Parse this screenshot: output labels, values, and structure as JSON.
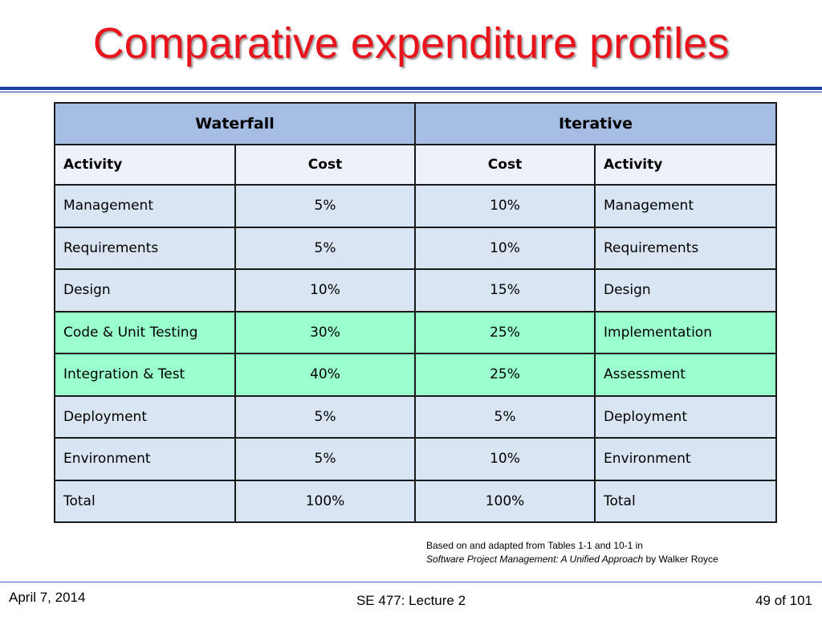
{
  "slide": {
    "title": "Comparative expenditure profiles"
  },
  "table": {
    "groups": [
      "Waterfall",
      "Iterative"
    ],
    "columns": [
      "Activity",
      "Cost",
      "Cost",
      "Activity"
    ],
    "rows": [
      {
        "waterfall_activity": "Management",
        "waterfall_cost": "5%",
        "iterative_cost": "10%",
        "iterative_activity": "Management",
        "highlight": false
      },
      {
        "waterfall_activity": "Requirements",
        "waterfall_cost": "5%",
        "iterative_cost": "10%",
        "iterative_activity": "Requirements",
        "highlight": false
      },
      {
        "waterfall_activity": "Design",
        "waterfall_cost": "10%",
        "iterative_cost": "15%",
        "iterative_activity": "Design",
        "highlight": false
      },
      {
        "waterfall_activity": "Code & Unit Testing",
        "waterfall_cost": "30%",
        "iterative_cost": "25%",
        "iterative_activity": "Implementation",
        "highlight": true
      },
      {
        "waterfall_activity": "Integration & Test",
        "waterfall_cost": "40%",
        "iterative_cost": "25%",
        "iterative_activity": "Assessment",
        "highlight": true
      },
      {
        "waterfall_activity": "Deployment",
        "waterfall_cost": "5%",
        "iterative_cost": "5%",
        "iterative_activity": "Deployment",
        "highlight": false
      },
      {
        "waterfall_activity": "Environment",
        "waterfall_cost": "5%",
        "iterative_cost": "10%",
        "iterative_activity": "Environment",
        "highlight": false
      },
      {
        "waterfall_activity": "Total",
        "waterfall_cost": "100%",
        "iterative_cost": "100%",
        "iterative_activity": "Total",
        "highlight": false
      }
    ]
  },
  "source_note": {
    "line1": "Based on and adapted from Tables 1-1 and 10-1 in",
    "book_title": "Software Project Management: A Unified Approach",
    "author": " by Walker Royce"
  },
  "footer": {
    "date": "April 7, 2014",
    "course": "SE 477: Lecture 2",
    "page": "49 of 101"
  },
  "colors": {
    "title": "#e8131b",
    "rule": "#1f3fa8",
    "group_header_bg": "#a6bde3",
    "column_header_bg": "#edf2fa",
    "row_bg": "#d9e5f3",
    "highlight_row_bg": "#99ffcc"
  }
}
